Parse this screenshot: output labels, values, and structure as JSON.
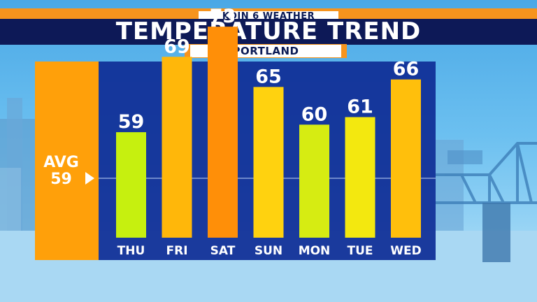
{
  "header": {
    "station": "KOIN 6 WEATHER",
    "title": "TEMPERATURE TREND",
    "location": "PORTLAND"
  },
  "average": {
    "label": "AVG",
    "value": "59"
  },
  "colors": {
    "header_orange": "#f7941d",
    "header_navy": "#0d1957",
    "avg_box": "#ffa00a",
    "panel": "#0f2d96",
    "bar_palette": {
      "59": "#c6f00f",
      "60": "#d6ec12",
      "61": "#f3e80f",
      "65": "#ffd20f",
      "66": "#ffbf0c",
      "69": "#ffb70a",
      "73": "#ff8f08"
    }
  },
  "chart_data": {
    "type": "bar",
    "categories": [
      "THU",
      "FRI",
      "SAT",
      "SUN",
      "MON",
      "TUE",
      "WED"
    ],
    "values": [
      59,
      69,
      73,
      65,
      60,
      61,
      66
    ],
    "reference_line": 59,
    "bar_colors": [
      "#c6f00f",
      "#ffb70a",
      "#ff8f08",
      "#ffd20f",
      "#d6ec12",
      "#f3e80f",
      "#ffbf0c"
    ],
    "title": "TEMPERATURE TREND",
    "ylim": [
      45,
      73
    ]
  }
}
